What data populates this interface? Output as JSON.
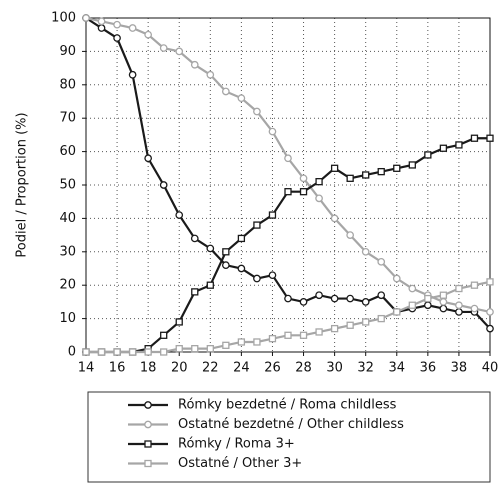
{
  "chart_data": {
    "type": "line",
    "y_label": "Podiel / Proportion (%)",
    "x": [
      14,
      15,
      16,
      17,
      18,
      19,
      20,
      21,
      22,
      23,
      24,
      25,
      26,
      27,
      28,
      29,
      30,
      31,
      32,
      33,
      34,
      35,
      36,
      37,
      38,
      39,
      40
    ],
    "xlim": [
      14,
      40
    ],
    "xticks": [
      14,
      16,
      18,
      20,
      22,
      24,
      26,
      28,
      30,
      32,
      34,
      36,
      38,
      40
    ],
    "ylim": [
      0,
      100
    ],
    "yticks": [
      0,
      10,
      20,
      30,
      40,
      50,
      60,
      70,
      80,
      90,
      100
    ],
    "grid": true,
    "legend": "bottom",
    "series": [
      {
        "name": "Rómky bezdetné / Roma childless",
        "color": "#1a1a1a",
        "marker": "circle",
        "values": [
          100,
          97,
          94,
          83,
          58,
          50,
          41,
          34,
          31,
          26,
          25,
          22,
          23,
          16,
          15,
          17,
          16,
          16,
          15,
          17,
          12,
          13,
          14,
          13,
          12,
          12,
          7
        ]
      },
      {
        "name": "Ostatné bezdetné / Other childless",
        "color": "#a6a6a6",
        "marker": "circle",
        "values": [
          100,
          99,
          98,
          97,
          95,
          91,
          90,
          86,
          83,
          78,
          76,
          72,
          66,
          58,
          52,
          46,
          40,
          35,
          30,
          27,
          22,
          19,
          17,
          15,
          14,
          13,
          12
        ]
      },
      {
        "name": "Rómky / Roma 3+",
        "color": "#1a1a1a",
        "marker": "square",
        "values": [
          0,
          0,
          0,
          0,
          1,
          5,
          9,
          18,
          20,
          30,
          34,
          38,
          41,
          48,
          48,
          51,
          55,
          52,
          53,
          54,
          55,
          56,
          59,
          61,
          62,
          64,
          64
        ]
      },
      {
        "name": "Ostatné / Other 3+",
        "color": "#a6a6a6",
        "marker": "square",
        "values": [
          0,
          0,
          0,
          0,
          0,
          0,
          1,
          1,
          1,
          2,
          3,
          3,
          4,
          5,
          5,
          6,
          7,
          8,
          9,
          10,
          12,
          14,
          16,
          17,
          19,
          20,
          21
        ]
      }
    ]
  }
}
